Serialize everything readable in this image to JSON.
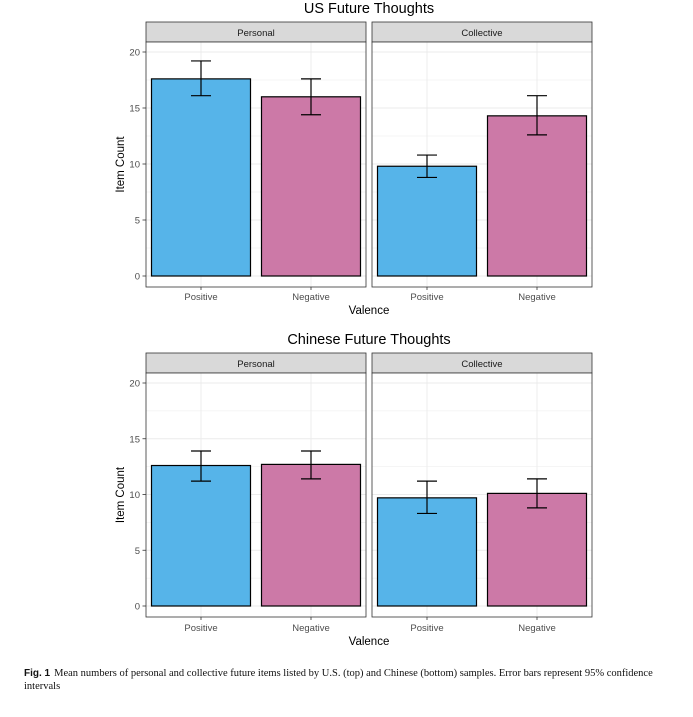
{
  "chart_data": [
    {
      "type": "bar",
      "title": "US Future Thoughts",
      "xlabel": "Valence",
      "ylabel": "Item Count",
      "ylim": [
        0,
        20
      ],
      "yticks": [
        0,
        5,
        10,
        15,
        20
      ],
      "grid": true,
      "legend": "none",
      "categories": [
        "Positive",
        "Negative"
      ],
      "panels": [
        {
          "name": "Personal",
          "values": [
            17.6,
            16.0
          ],
          "ci_low": [
            16.1,
            14.4
          ],
          "ci_high": [
            19.2,
            17.6
          ]
        },
        {
          "name": "Collective",
          "values": [
            9.8,
            14.3
          ],
          "ci_low": [
            8.8,
            12.6
          ],
          "ci_high": [
            10.8,
            16.1
          ]
        }
      ]
    },
    {
      "type": "bar",
      "title": "Chinese Future Thoughts",
      "xlabel": "Valence",
      "ylabel": "Item Count",
      "ylim": [
        0,
        20
      ],
      "yticks": [
        0,
        5,
        10,
        15,
        20
      ],
      "grid": true,
      "legend": "none",
      "categories": [
        "Positive",
        "Negative"
      ],
      "panels": [
        {
          "name": "Personal",
          "values": [
            12.6,
            12.7
          ],
          "ci_low": [
            11.2,
            11.4
          ],
          "ci_high": [
            13.9,
            13.9
          ]
        },
        {
          "name": "Collective",
          "values": [
            9.7,
            10.1
          ],
          "ci_low": [
            8.3,
            8.8
          ],
          "ci_high": [
            11.2,
            11.4
          ]
        }
      ]
    }
  ],
  "colors": {
    "positive": "#56B4E9",
    "negative": "#CC79A7",
    "strip": "#D9D9D9",
    "grid": "#EBEBEB",
    "axis": "#333333"
  },
  "caption": {
    "label": "Fig. 1",
    "text": "Mean numbers of personal and collective future items listed by U.S. (top) and Chinese (bottom) samples. Error bars represent 95% confidence intervals"
  }
}
